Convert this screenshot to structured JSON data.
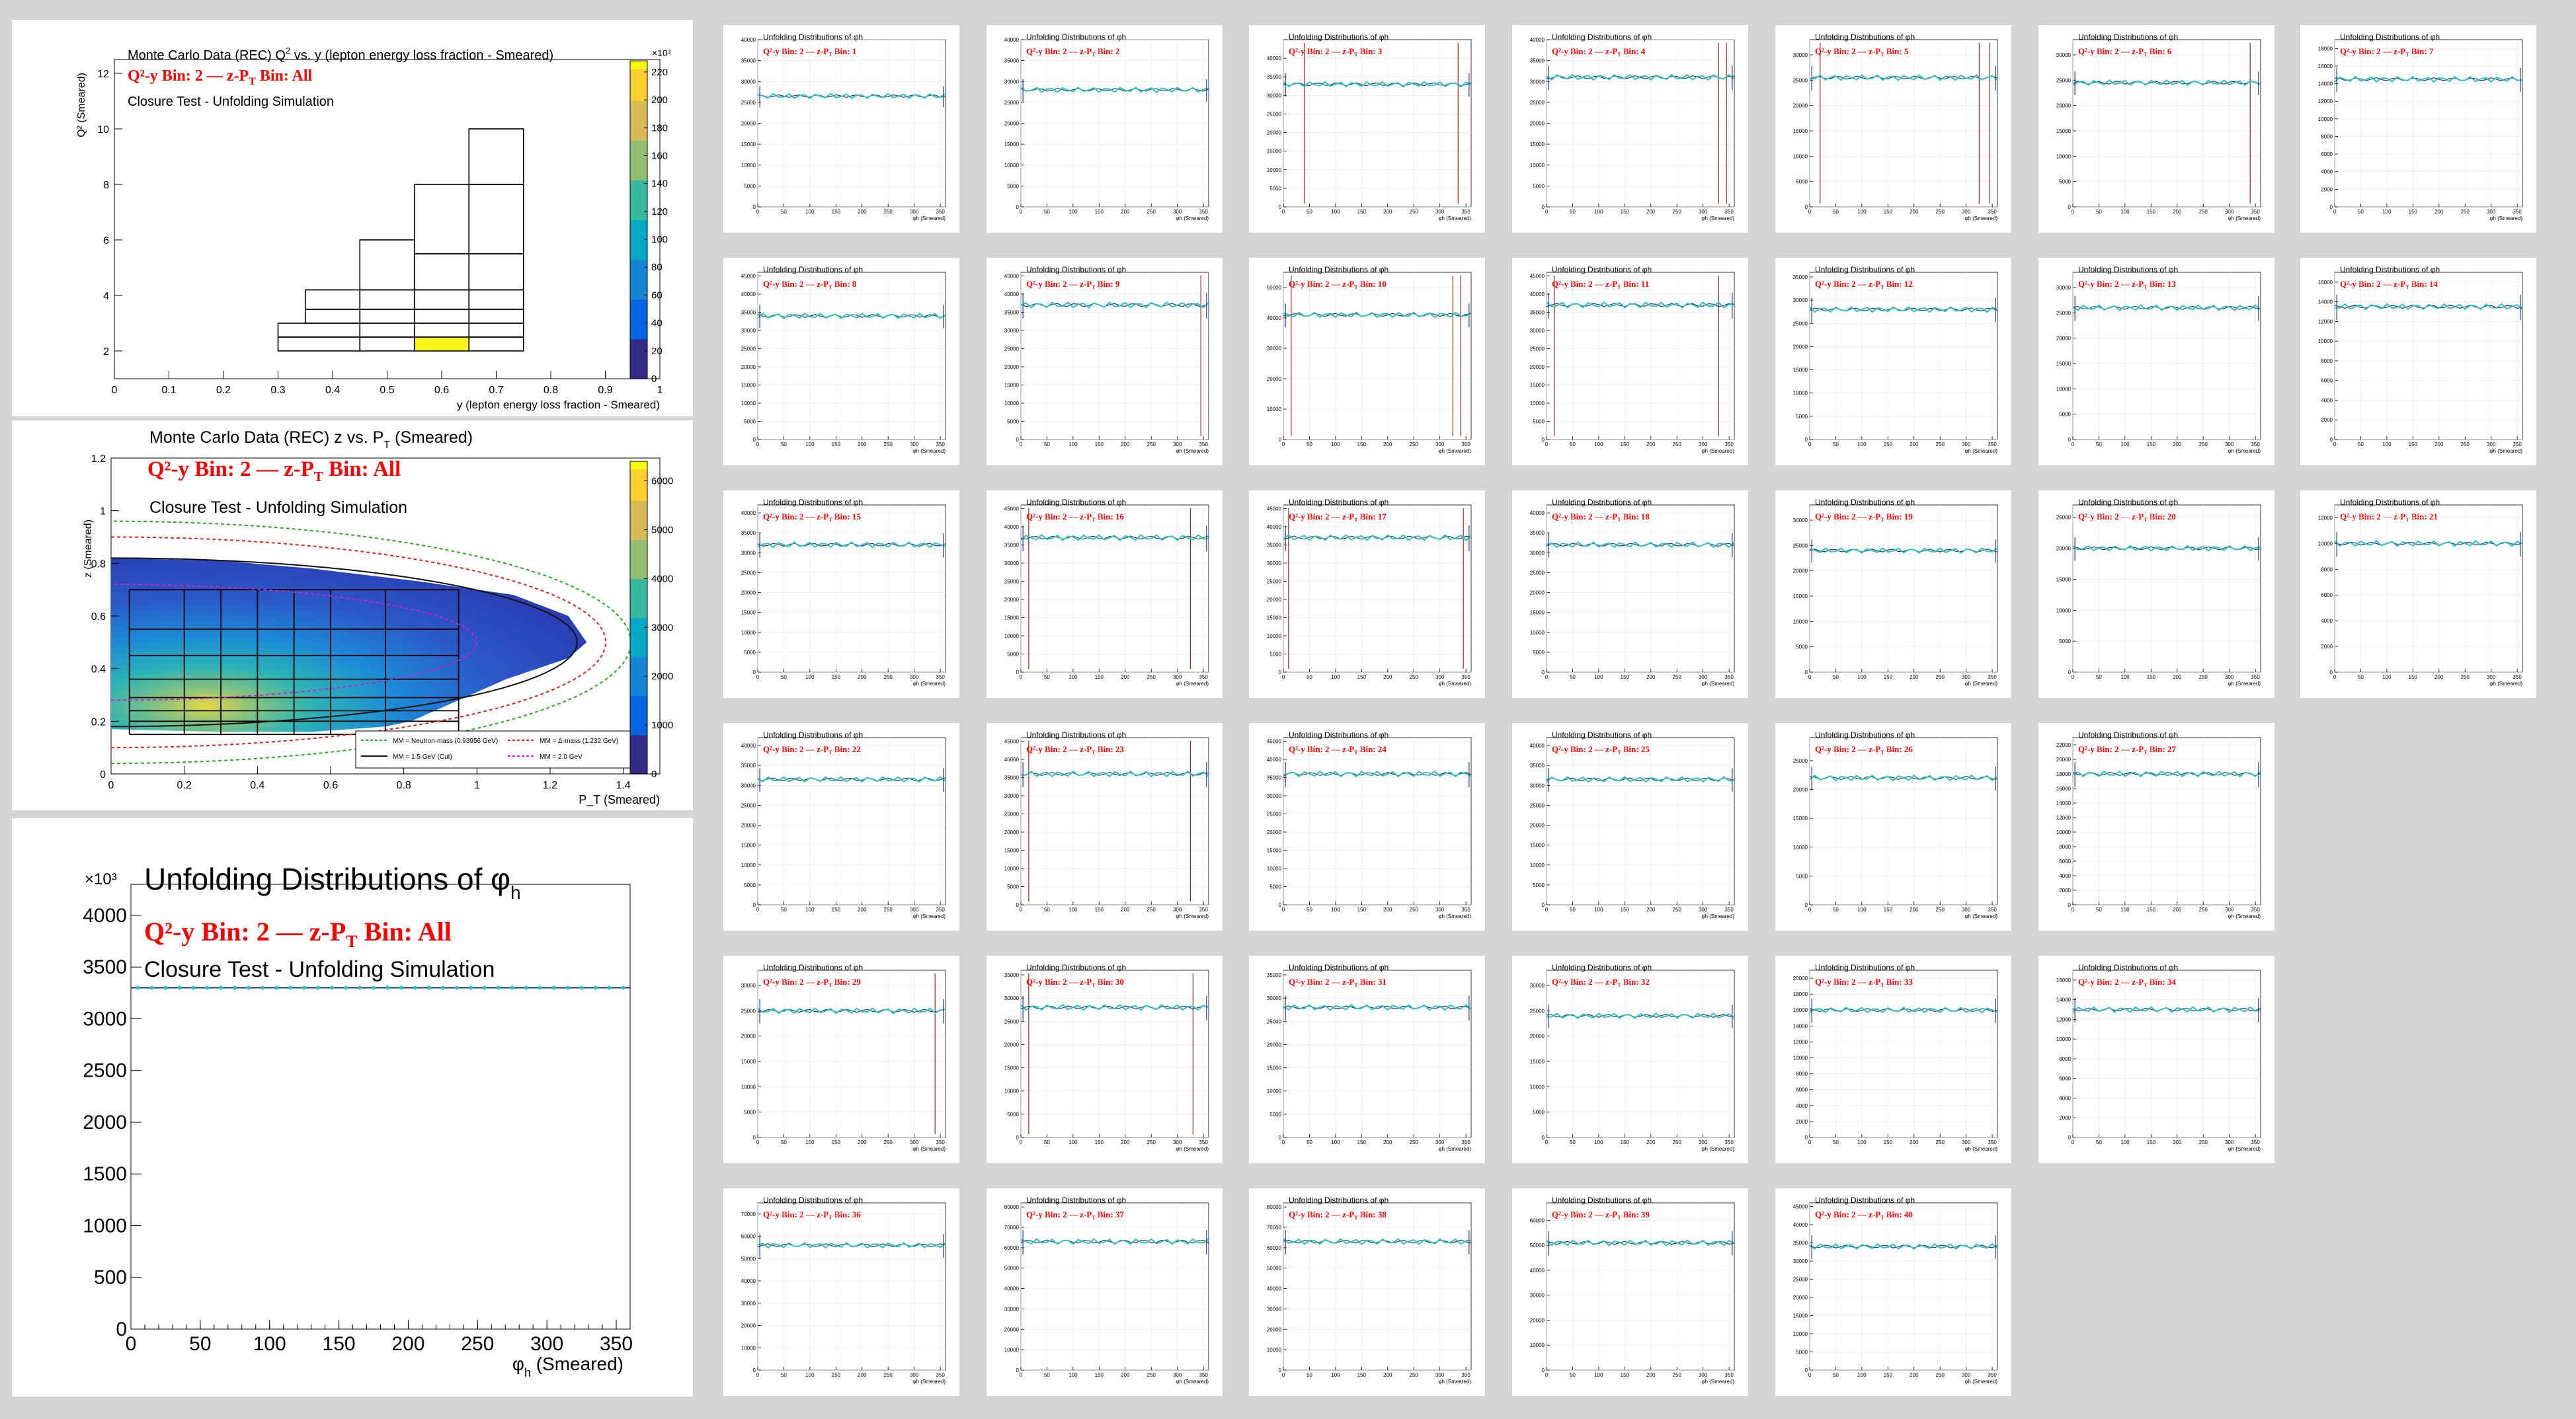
{
  "q2y_panel": {
    "title_pre": "Monte Carlo Data (REC) Q",
    "title_sup": "2",
    "title_post": " vs. y (lepton energy loss fraction - Smeared)",
    "bin_label": "Q²-y Bin: 2 — z-P",
    "bin_sub": "T",
    "bin_tail": " Bin: All",
    "subtitle": "Closure Test - Unfolding Simulation",
    "xlabel": "y (lepton energy loss fraction - Smeared)",
    "ylabel": "Q² (Smeared)",
    "x_ticks": [
      "0",
      "0.1",
      "0.2",
      "0.3",
      "0.4",
      "0.5",
      "0.6",
      "0.7",
      "0.8",
      "0.9",
      "1"
    ],
    "y_ticks": [
      "2",
      "4",
      "6",
      "8",
      "10",
      "12"
    ],
    "z_ticks": [
      "0",
      "20",
      "40",
      "60",
      "80",
      "100",
      "120",
      "140",
      "160",
      "180",
      "200",
      "220"
    ],
    "z_exponent": "×10³"
  },
  "zpt_panel": {
    "title_pre": "Monte Carlo Data (REC) z vs. P",
    "title_sub": "T",
    "title_post": " (Smeared)",
    "bin_label": "Q²-y Bin: 2 — z-P",
    "bin_sub": "T",
    "bin_tail": " Bin: All",
    "subtitle": "Closure Test - Unfolding Simulation",
    "xlabel": "P_T (Smeared)",
    "ylabel": "z (Smeared)",
    "x_ticks": [
      "0",
      "0.2",
      "0.4",
      "0.6",
      "0.8",
      "1",
      "1.2",
      "1.4"
    ],
    "y_ticks": [
      "0",
      "0.2",
      "0.4",
      "0.6",
      "0.8",
      "1",
      "1.2"
    ],
    "z_ticks": [
      "0",
      "1000",
      "2000",
      "3000",
      "4000",
      "5000",
      "6000"
    ],
    "legend": [
      {
        "label": "MM = Neutron-mass (0.93956 GeV)",
        "color": "#22aa22"
      },
      {
        "label": "MM = Δ-mass (1.232 GeV)",
        "color": "#dd2222"
      },
      {
        "label": "MM = 1.5 GeV (Cut)",
        "color": "#111111"
      },
      {
        "label": "MM = 2.0 GeV",
        "color": "#cc22cc"
      }
    ]
  },
  "main_panel": {
    "title_pre": "Unfolding Distributions of  ",
    "title_phi": "φ",
    "title_sub": "h",
    "bin_label": "Q²-y Bin: 2 — z-P",
    "bin_sub": "T",
    "bin_tail": " Bin: All",
    "subtitle": "Closure Test - Unfolding Simulation",
    "xlabel_phi": "φ",
    "xlabel_sub": "h",
    "xlabel_tail": " (Smeared)",
    "y_exponent": "×10³"
  },
  "small_panels": {
    "title": "Unfolding Distributions of   φh",
    "bin_prefix": "Q²-y Bin: 2 — z-P",
    "bin_sub": "T",
    "bin_word": " Bin: ",
    "xlabel": "φh (Smeared)",
    "x_ticks": [
      "0",
      "50",
      "100",
      "150",
      "200",
      "250",
      "300",
      "350"
    ]
  },
  "colors": {
    "red_label": "#ff0000",
    "unfold_line": "#30c0c0",
    "error_bar": "#1f3a6e",
    "spike": "#8b2a1f",
    "panel_bg": "#ffffff",
    "page_bg": "#d4d4d4"
  },
  "chart_data": [
    {
      "type": "heatmap",
      "name": "Q2 vs y",
      "xlim": [
        0,
        1
      ],
      "ylim": [
        1,
        12.5
      ],
      "zlim": [
        0,
        230000
      ],
      "bins": [
        {
          "x": [
            0.3,
            0.45
          ],
          "y": [
            2.0,
            2.5
          ]
        },
        {
          "x": [
            0.45,
            0.55
          ],
          "y": [
            2.0,
            2.5
          ]
        },
        {
          "x": [
            0.55,
            0.65
          ],
          "y": [
            2.0,
            2.5
          ],
          "hot": true
        },
        {
          "x": [
            0.65,
            0.75
          ],
          "y": [
            2.0,
            2.5
          ]
        },
        {
          "x": [
            0.3,
            0.45
          ],
          "y": [
            2.5,
            3.0
          ]
        },
        {
          "x": [
            0.45,
            0.55
          ],
          "y": [
            2.5,
            3.0
          ]
        },
        {
          "x": [
            0.55,
            0.65
          ],
          "y": [
            2.5,
            3.0
          ]
        },
        {
          "x": [
            0.65,
            0.75
          ],
          "y": [
            2.5,
            3.0
          ]
        },
        {
          "x": [
            0.35,
            0.45
          ],
          "y": [
            3.0,
            3.5
          ]
        },
        {
          "x": [
            0.45,
            0.55
          ],
          "y": [
            3.0,
            3.5
          ]
        },
        {
          "x": [
            0.55,
            0.65
          ],
          "y": [
            3.0,
            3.5
          ]
        },
        {
          "x": [
            0.65,
            0.75
          ],
          "y": [
            3.0,
            3.5
          ]
        },
        {
          "x": [
            0.35,
            0.45
          ],
          "y": [
            3.5,
            4.2
          ]
        },
        {
          "x": [
            0.45,
            0.55
          ],
          "y": [
            3.5,
            4.2
          ]
        },
        {
          "x": [
            0.55,
            0.65
          ],
          "y": [
            3.5,
            4.2
          ]
        },
        {
          "x": [
            0.65,
            0.75
          ],
          "y": [
            3.5,
            4.2
          ]
        },
        {
          "x": [
            0.45,
            0.55
          ],
          "y": [
            4.2,
            6.0
          ]
        },
        {
          "x": [
            0.55,
            0.65
          ],
          "y": [
            4.2,
            5.5
          ]
        },
        {
          "x": [
            0.65,
            0.75
          ],
          "y": [
            4.2,
            5.5
          ]
        },
        {
          "x": [
            0.55,
            0.65
          ],
          "y": [
            5.5,
            8.0
          ]
        },
        {
          "x": [
            0.65,
            0.75
          ],
          "y": [
            5.5,
            8.0
          ]
        },
        {
          "x": [
            0.65,
            0.75
          ],
          "y": [
            8.0,
            10.0
          ]
        }
      ]
    },
    {
      "type": "heatmap",
      "name": "z vs PT",
      "xlim": [
        0,
        1.5
      ],
      "ylim": [
        0,
        1.2
      ],
      "zlim": [
        0,
        6500
      ],
      "z_edges": [
        0.15,
        0.2,
        0.24,
        0.29,
        0.36,
        0.45,
        0.55,
        0.7
      ],
      "pt_edges": [
        0.05,
        0.2,
        0.3,
        0.4,
        0.5,
        0.6,
        0.75,
        0.95
      ],
      "curves": [
        "neutron-mass",
        "delta-mass",
        "1.5 GeV cut",
        "2.0 GeV"
      ]
    },
    {
      "type": "line",
      "name": "Unfolding Distributions of phi_h (All)",
      "xlim": [
        0,
        360
      ],
      "ylim": [
        0,
        4300
      ],
      "y_ticks": [
        0,
        500,
        1000,
        1500,
        2000,
        2500,
        3000,
        3500,
        4000
      ],
      "x_ticks": [
        0,
        50,
        100,
        150,
        200,
        250,
        300,
        350
      ],
      "series": [
        {
          "flat_value": 3300
        }
      ]
    },
    {
      "type": "line",
      "name": "per-bin phi_h unfolding",
      "xlim": [
        0,
        360
      ],
      "panels": [
        {
          "bin": 1,
          "ymax": 40000,
          "level": 26500,
          "yticks": [
            0,
            5000,
            10000,
            15000,
            20000,
            25000,
            30000,
            35000,
            40000
          ]
        },
        {
          "bin": 2,
          "ymax": 40000,
          "level": 28000,
          "yticks": [
            0,
            5000,
            10000,
            15000,
            20000,
            25000,
            30000,
            35000,
            40000
          ]
        },
        {
          "bin": 3,
          "ymax": 45000,
          "level": 33000,
          "yticks": [
            0,
            5000,
            10000,
            15000,
            20000,
            25000,
            30000,
            35000,
            40000
          ],
          "spikes": [
            40,
            335
          ]
        },
        {
          "bin": 4,
          "ymax": 40000,
          "level": 31000,
          "yticks": [
            0,
            5000,
            10000,
            15000,
            20000,
            25000,
            30000,
            35000,
            40000
          ],
          "spikes": [
            330,
            345
          ]
        },
        {
          "bin": 5,
          "ymax": 33000,
          "level": 25500,
          "yticks": [
            0,
            5000,
            10000,
            15000,
            20000,
            25000,
            30000
          ],
          "spikes": [
            20,
            325,
            345
          ]
        },
        {
          "bin": 6,
          "ymax": 33000,
          "level": 24500,
          "yticks": [
            0,
            5000,
            10000,
            15000,
            20000,
            25000,
            30000
          ],
          "spikes": [
            340
          ]
        },
        {
          "bin": 7,
          "ymax": 19000,
          "level": 14500,
          "yticks": [
            0,
            2000,
            4000,
            6000,
            8000,
            10000,
            12000,
            14000,
            16000,
            18000
          ]
        },
        {
          "bin": 8,
          "ymax": 46000,
          "level": 34000,
          "yticks": [
            0,
            5000,
            10000,
            15000,
            20000,
            25000,
            30000,
            35000,
            40000,
            45000
          ]
        },
        {
          "bin": 9,
          "ymax": 46000,
          "level": 37000,
          "yticks": [
            0,
            5000,
            10000,
            15000,
            20000,
            25000,
            30000,
            35000,
            40000,
            45000
          ],
          "spikes": [
            345
          ]
        },
        {
          "bin": 10,
          "ymax": 55000,
          "level": 41000,
          "yticks": [
            0,
            10000,
            20000,
            30000,
            40000,
            50000
          ],
          "spikes": [
            15,
            325,
            340
          ]
        },
        {
          "bin": 11,
          "ymax": 46000,
          "level": 37000,
          "yticks": [
            0,
            5000,
            10000,
            15000,
            20000,
            25000,
            30000,
            35000,
            40000,
            45000
          ],
          "spikes": [
            15,
            330
          ]
        },
        {
          "bin": 12,
          "ymax": 36000,
          "level": 28000,
          "yticks": [
            0,
            5000,
            10000,
            15000,
            20000,
            25000,
            30000,
            35000
          ]
        },
        {
          "bin": 13,
          "ymax": 33000,
          "level": 26000,
          "yticks": [
            0,
            5000,
            10000,
            15000,
            20000,
            25000,
            30000
          ]
        },
        {
          "bin": 14,
          "ymax": 17000,
          "level": 13500,
          "yticks": [
            0,
            2000,
            4000,
            6000,
            8000,
            10000,
            12000,
            14000,
            16000
          ]
        },
        {
          "bin": 15,
          "ymax": 42000,
          "level": 32000,
          "yticks": [
            0,
            5000,
            10000,
            15000,
            20000,
            25000,
            30000,
            35000,
            40000
          ]
        },
        {
          "bin": 16,
          "ymax": 46000,
          "level": 37000,
          "yticks": [
            0,
            5000,
            10000,
            15000,
            20000,
            25000,
            30000,
            35000,
            40000,
            45000
          ],
          "spikes": [
            15,
            325
          ]
        },
        {
          "bin": 17,
          "ymax": 46000,
          "level": 37000,
          "yticks": [
            0,
            5000,
            10000,
            15000,
            20000,
            25000,
            30000,
            35000,
            40000,
            45000
          ],
          "spikes": [
            10,
            345
          ]
        },
        {
          "bin": 18,
          "ymax": 42000,
          "level": 32000,
          "yticks": [
            0,
            5000,
            10000,
            15000,
            20000,
            25000,
            30000,
            35000,
            40000
          ]
        },
        {
          "bin": 19,
          "ymax": 33000,
          "level": 24000,
          "yticks": [
            0,
            5000,
            10000,
            15000,
            20000,
            25000,
            30000
          ]
        },
        {
          "bin": 20,
          "ymax": 27000,
          "level": 20000,
          "yticks": [
            0,
            5000,
            10000,
            15000,
            20000,
            25000
          ]
        },
        {
          "bin": 21,
          "ymax": 13000,
          "level": 10000,
          "yticks": [
            0,
            2000,
            4000,
            6000,
            8000,
            10000,
            12000
          ]
        },
        {
          "bin": 22,
          "ymax": 42000,
          "level": 31500,
          "yticks": [
            0,
            5000,
            10000,
            15000,
            20000,
            25000,
            30000,
            35000,
            40000
          ]
        },
        {
          "bin": 23,
          "ymax": 46000,
          "level": 36000,
          "yticks": [
            0,
            5000,
            10000,
            15000,
            20000,
            25000,
            30000,
            35000,
            40000,
            45000
          ],
          "spikes": [
            15,
            325
          ]
        },
        {
          "bin": 24,
          "ymax": 46000,
          "level": 36000,
          "yticks": [
            0,
            5000,
            10000,
            15000,
            20000,
            25000,
            30000,
            35000,
            40000,
            45000
          ]
        },
        {
          "bin": 25,
          "ymax": 42000,
          "level": 31500,
          "yticks": [
            0,
            5000,
            10000,
            15000,
            20000,
            25000,
            30000,
            35000,
            40000
          ]
        },
        {
          "bin": 26,
          "ymax": 29000,
          "level": 22000,
          "yticks": [
            0,
            5000,
            10000,
            15000,
            20000,
            25000
          ]
        },
        {
          "bin": 27,
          "ymax": 23000,
          "level": 18000,
          "yticks": [
            0,
            2000,
            4000,
            6000,
            8000,
            10000,
            12000,
            14000,
            16000,
            18000,
            20000,
            22000
          ]
        },
        {
          "bin": 29,
          "ymax": 33000,
          "level": 25000,
          "yticks": [
            0,
            5000,
            10000,
            15000,
            20000,
            25000,
            30000
          ],
          "spikes": [
            340
          ]
        },
        {
          "bin": 30,
          "ymax": 36000,
          "level": 28000,
          "yticks": [
            0,
            5000,
            10000,
            15000,
            20000,
            25000,
            30000,
            35000
          ],
          "spikes": [
            15,
            330
          ]
        },
        {
          "bin": 31,
          "ymax": 36000,
          "level": 28000,
          "yticks": [
            0,
            5000,
            10000,
            15000,
            20000,
            25000,
            30000,
            35000
          ]
        },
        {
          "bin": 32,
          "ymax": 33000,
          "level": 24000,
          "yticks": [
            0,
            5000,
            10000,
            15000,
            20000,
            25000,
            30000
          ]
        },
        {
          "bin": 33,
          "ymax": 21000,
          "level": 16000,
          "yticks": [
            0,
            2000,
            4000,
            6000,
            8000,
            10000,
            12000,
            14000,
            16000,
            18000,
            20000
          ]
        },
        {
          "bin": 34,
          "ymax": 17000,
          "level": 13000,
          "yticks": [
            0,
            2000,
            4000,
            6000,
            8000,
            10000,
            12000,
            14000,
            16000
          ]
        },
        {
          "bin": 36,
          "ymax": 75000,
          "level": 56000,
          "yticks": [
            0,
            10000,
            20000,
            30000,
            40000,
            50000,
            60000,
            70000
          ]
        },
        {
          "bin": 37,
          "ymax": 82000,
          "level": 63000,
          "yticks": [
            0,
            10000,
            20000,
            30000,
            40000,
            50000,
            60000,
            70000,
            80000
          ]
        },
        {
          "bin": 38,
          "ymax": 82000,
          "level": 63000,
          "yticks": [
            0,
            10000,
            20000,
            30000,
            40000,
            50000,
            60000,
            70000,
            80000
          ]
        },
        {
          "bin": 39,
          "ymax": 67000,
          "level": 51000,
          "yticks": [
            0,
            10000,
            20000,
            30000,
            40000,
            50000,
            60000
          ]
        },
        {
          "bin": 40,
          "ymax": 46000,
          "level": 34000,
          "yticks": [
            0,
            5000,
            10000,
            15000,
            20000,
            25000,
            30000,
            35000,
            40000,
            45000
          ]
        }
      ]
    }
  ]
}
